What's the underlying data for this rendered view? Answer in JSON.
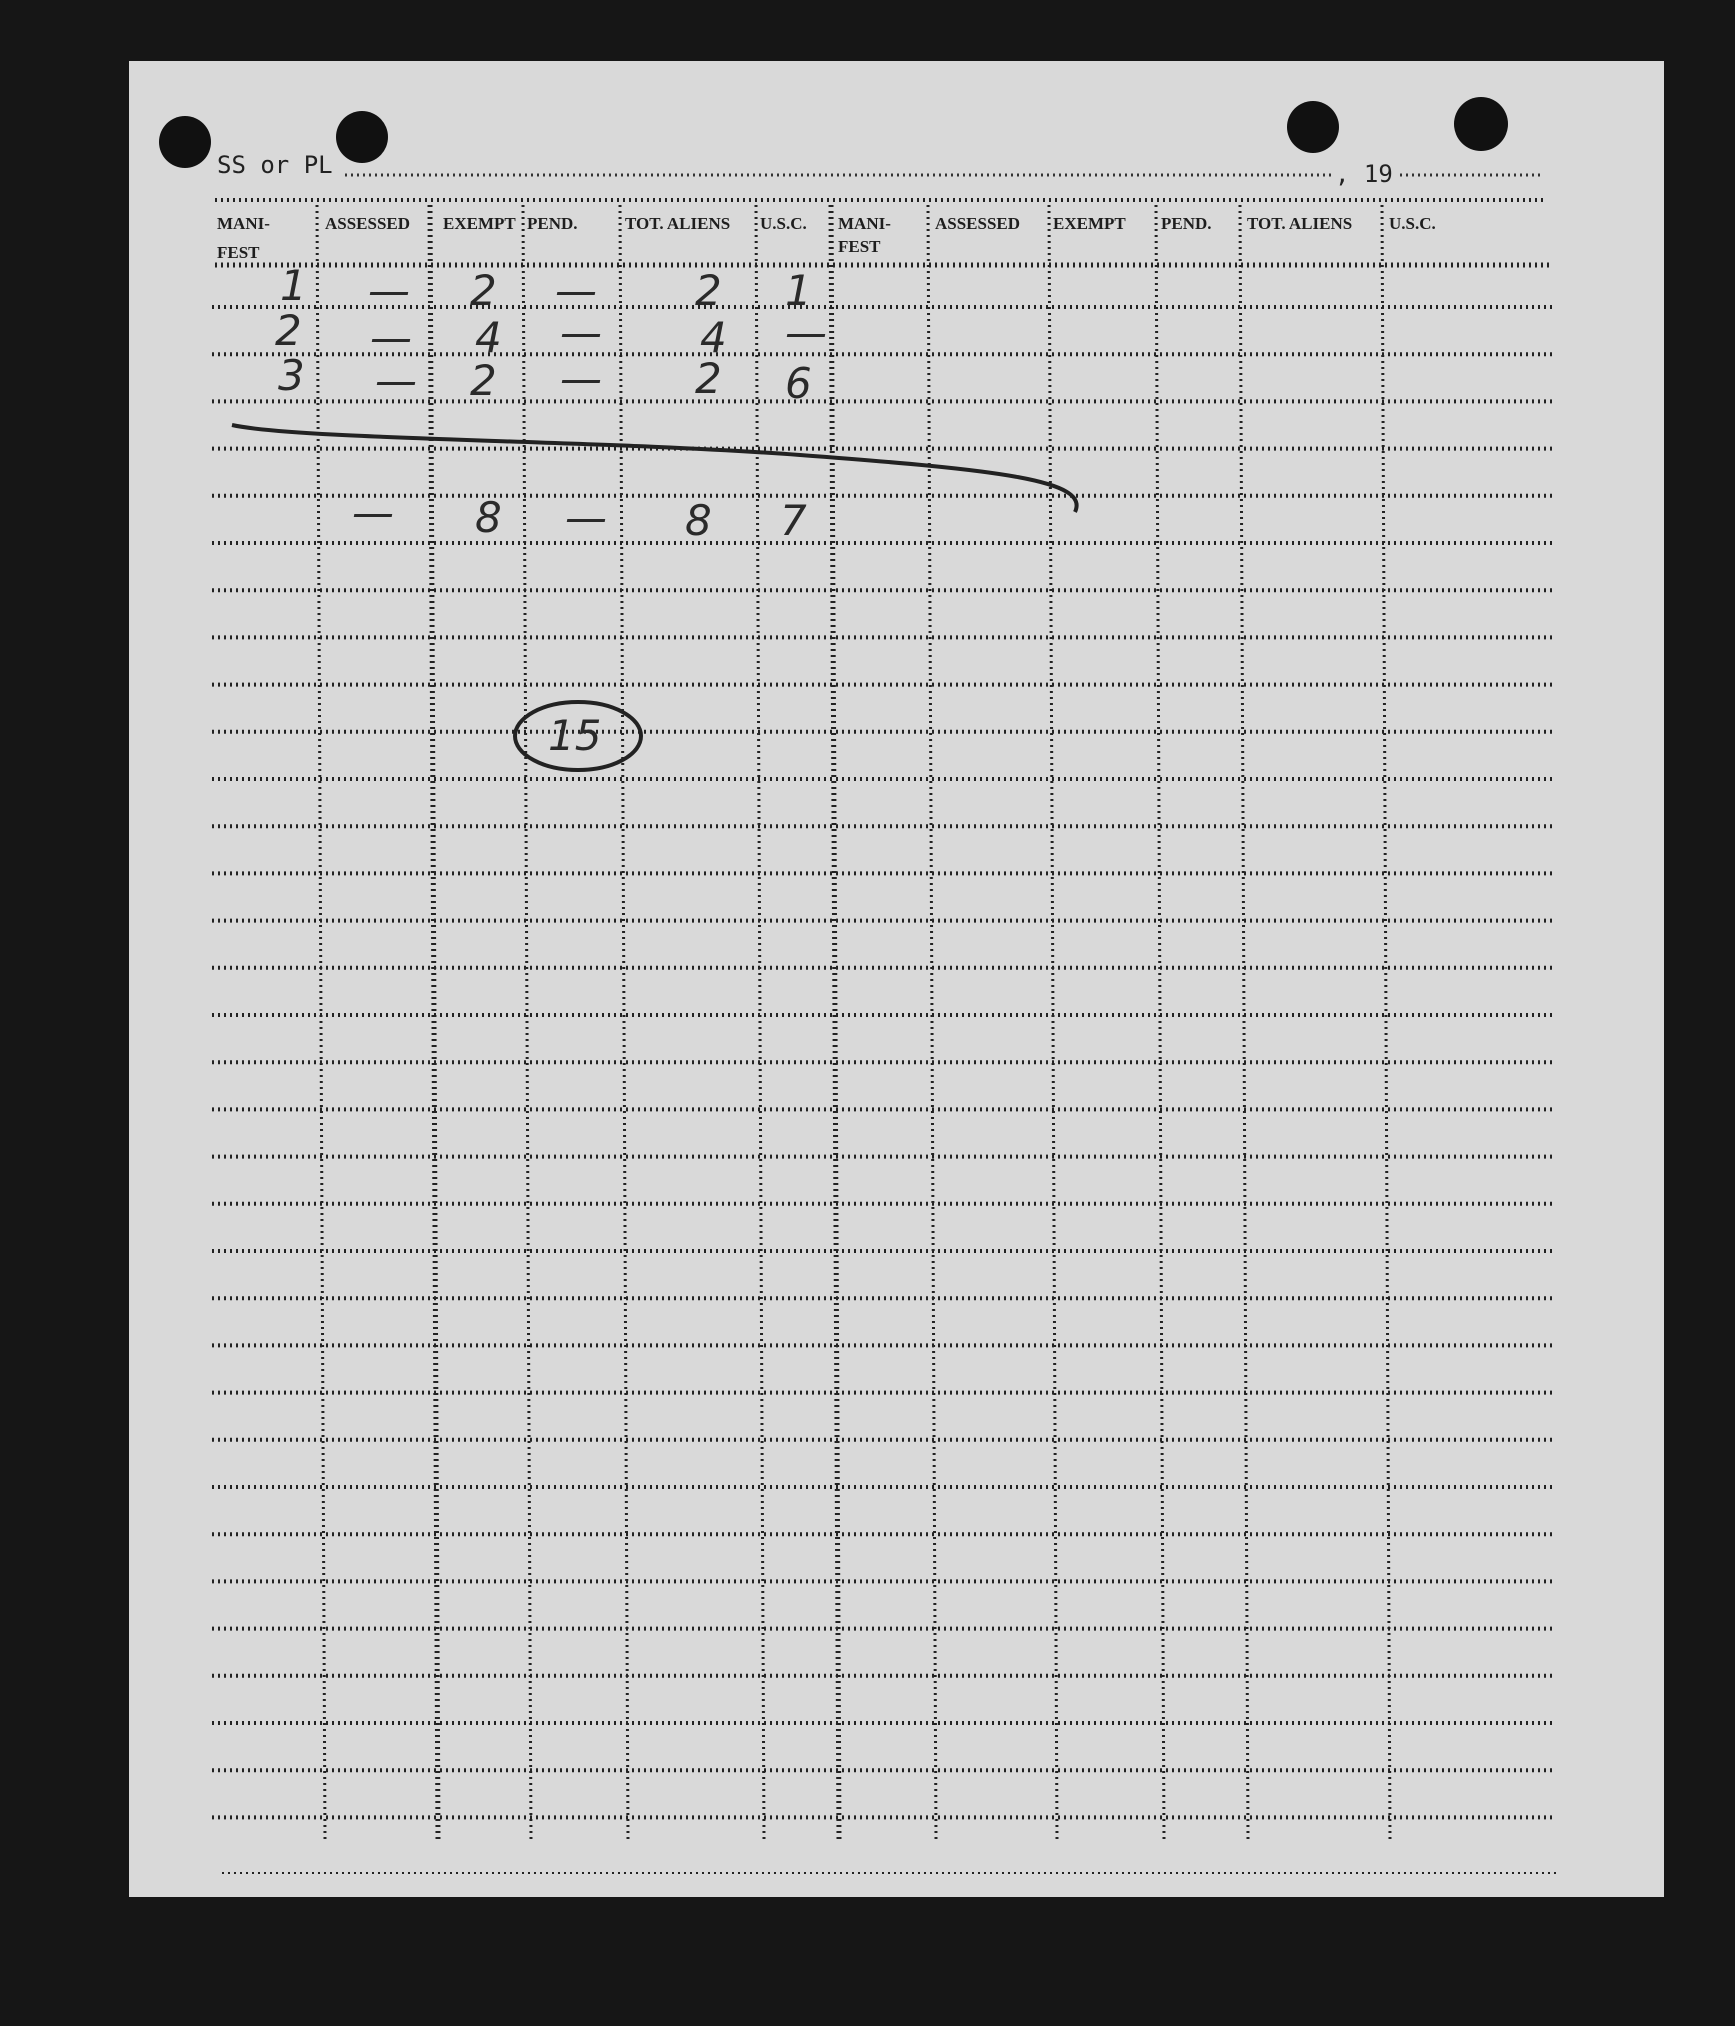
{
  "form": {
    "ss_label": "SS or PL",
    "year_label": ", 19"
  },
  "columns": [
    "MANI-FEST",
    "ASSESSED",
    "EXEMPT",
    "PEND.",
    "TOT. ALIENS",
    "U.S.C.",
    "MANI-FEST",
    "ASSESSED",
    "EXEMPT",
    "PEND.",
    "TOT. ALIENS",
    "U.S.C."
  ],
  "headers": {
    "c0a": "MANI-",
    "c0b": "FEST",
    "c1": "ASSESSED",
    "c2": "EXEMPT",
    "c3": "PEND.",
    "c4": "TOT. ALIENS",
    "c5": "U.S.C.",
    "c6a": "MANI-",
    "c6b": "FEST",
    "c7": "ASSESSED",
    "c8": "EXEMPT",
    "c9": "PEND.",
    "c10": "TOT. ALIENS",
    "c11": "U.S.C."
  },
  "rows": [
    [
      "1",
      "—",
      "2",
      "—",
      "2",
      "1"
    ],
    [
      "2",
      "—",
      "4",
      "—",
      "4",
      "—"
    ],
    [
      "3",
      "—",
      "2",
      "—",
      "2",
      "6"
    ]
  ],
  "totals": [
    "",
    "—",
    "8",
    "—",
    "8",
    "7"
  ],
  "circled_note": "15"
}
